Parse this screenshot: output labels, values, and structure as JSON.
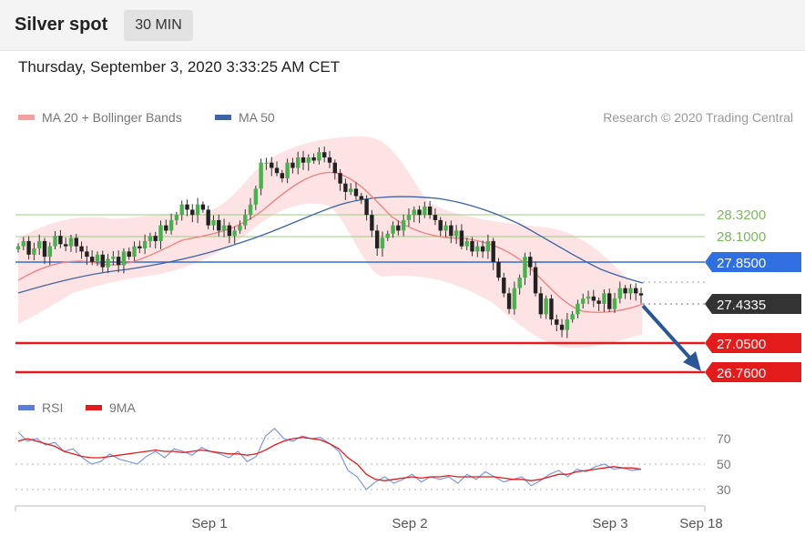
{
  "header": {
    "title": "Silver spot",
    "timeframe": "30 MIN"
  },
  "timestamp": "Thursday, September 3, 2020 3:33:25 AM CET",
  "legend": {
    "ma20_label": "MA 20 + Bollinger Bands",
    "ma50_label": "MA 50",
    "credit": "Research © 2020 Trading Central"
  },
  "colors": {
    "ma20": "#f26b6b",
    "ma50": "#3d62a8",
    "band_fill": "#fbd6d6",
    "resistance": "#8cc36a",
    "pivot": "#2f6fe0",
    "support": "#e31b1b",
    "last_price": "#333333",
    "rsi": "#5b7fd6",
    "rsi_ma": "#e31b1b",
    "arrow": "#2b5797"
  },
  "chart_data": [
    {
      "type": "candlestick",
      "x_labels": [
        "Sep 1",
        "Sep 2",
        "Sep 3",
        "Sep 18"
      ],
      "y_range": [
        26.6,
        28.95
      ],
      "closes": [
        27.9,
        27.95,
        27.82,
        27.88,
        27.95,
        27.8,
        27.9,
        28.0,
        27.92,
        27.9,
        27.98,
        27.9,
        27.85,
        27.8,
        27.75,
        27.82,
        27.7,
        27.78,
        27.8,
        27.72,
        27.85,
        27.8,
        27.9,
        27.88,
        27.95,
        28.0,
        27.95,
        28.1,
        28.05,
        28.15,
        28.2,
        28.3,
        28.25,
        28.2,
        28.3,
        28.25,
        28.1,
        28.15,
        28.05,
        28.1,
        28.0,
        28.05,
        28.1,
        28.2,
        28.3,
        28.45,
        28.7,
        28.7,
        28.65,
        28.6,
        28.55,
        28.7,
        28.65,
        28.75,
        28.7,
        28.75,
        28.72,
        28.8,
        28.75,
        28.7,
        28.6,
        28.5,
        28.42,
        28.45,
        28.38,
        28.35,
        28.2,
        28.05,
        27.88,
        27.98,
        28.02,
        28.1,
        28.05,
        28.15,
        28.2,
        28.25,
        28.2,
        28.28,
        28.2,
        28.15,
        28.05,
        28.1,
        28.0,
        28.05,
        27.9,
        27.95,
        27.85,
        27.9,
        27.85,
        27.95,
        27.75,
        27.6,
        27.45,
        27.3,
        27.5,
        27.6,
        27.8,
        27.7,
        27.45,
        27.25,
        27.4,
        27.2,
        27.15,
        27.1,
        27.2,
        27.25,
        27.35,
        27.4,
        27.42,
        27.38,
        27.35,
        27.45,
        27.3,
        27.4,
        27.5,
        27.45,
        27.5,
        27.45,
        27.43
      ],
      "series": [
        {
          "name": "MA 20 + Bollinger Bands"
        },
        {
          "name": "MA 50"
        }
      ],
      "levels": [
        {
          "kind": "resistance",
          "value": 28.32,
          "label": "28.3200"
        },
        {
          "kind": "resistance",
          "value": 28.1,
          "label": "28.1000"
        },
        {
          "kind": "pivot",
          "value": 27.85,
          "label": "27.8500"
        },
        {
          "kind": "last",
          "value": 27.4335,
          "label": "27.4335"
        },
        {
          "kind": "support",
          "value": 27.05,
          "label": "27.0500"
        },
        {
          "kind": "support",
          "value": 26.76,
          "label": "26.7600"
        }
      ]
    },
    {
      "type": "line",
      "series": [
        {
          "name": "RSI",
          "values": [
            75,
            68,
            70,
            65,
            67,
            60,
            62,
            55,
            50,
            52,
            58,
            54,
            52,
            50,
            56,
            60,
            55,
            62,
            60,
            57,
            63,
            60,
            58,
            55,
            60,
            52,
            56,
            72,
            78,
            70,
            68,
            72,
            70,
            71,
            66,
            60,
            45,
            40,
            30,
            36,
            40,
            35,
            38,
            42,
            36,
            40,
            38,
            40,
            35,
            42,
            38,
            44,
            40,
            36,
            38,
            40,
            33,
            37,
            42,
            45,
            40,
            46,
            44,
            48,
            50,
            46,
            47,
            45,
            46
          ]
        },
        {
          "name": "9MA",
          "values": [
            68,
            70,
            68,
            66,
            64,
            60,
            58,
            56,
            55,
            55,
            56,
            57,
            58,
            59,
            60,
            61,
            60,
            60,
            59,
            60,
            61,
            60,
            59,
            58,
            58,
            57,
            58,
            61,
            65,
            68,
            70,
            71,
            70,
            69,
            66,
            62,
            55,
            50,
            42,
            38,
            37,
            38,
            39,
            40,
            39,
            40,
            40,
            41,
            40,
            40,
            40,
            40,
            40,
            39,
            38,
            38,
            37,
            38,
            40,
            42,
            42,
            44,
            45,
            46,
            47,
            48,
            47,
            47,
            46
          ]
        }
      ],
      "levels": [
        70,
        50,
        30
      ],
      "level_labels": [
        "70",
        "50",
        "30"
      ]
    }
  ]
}
